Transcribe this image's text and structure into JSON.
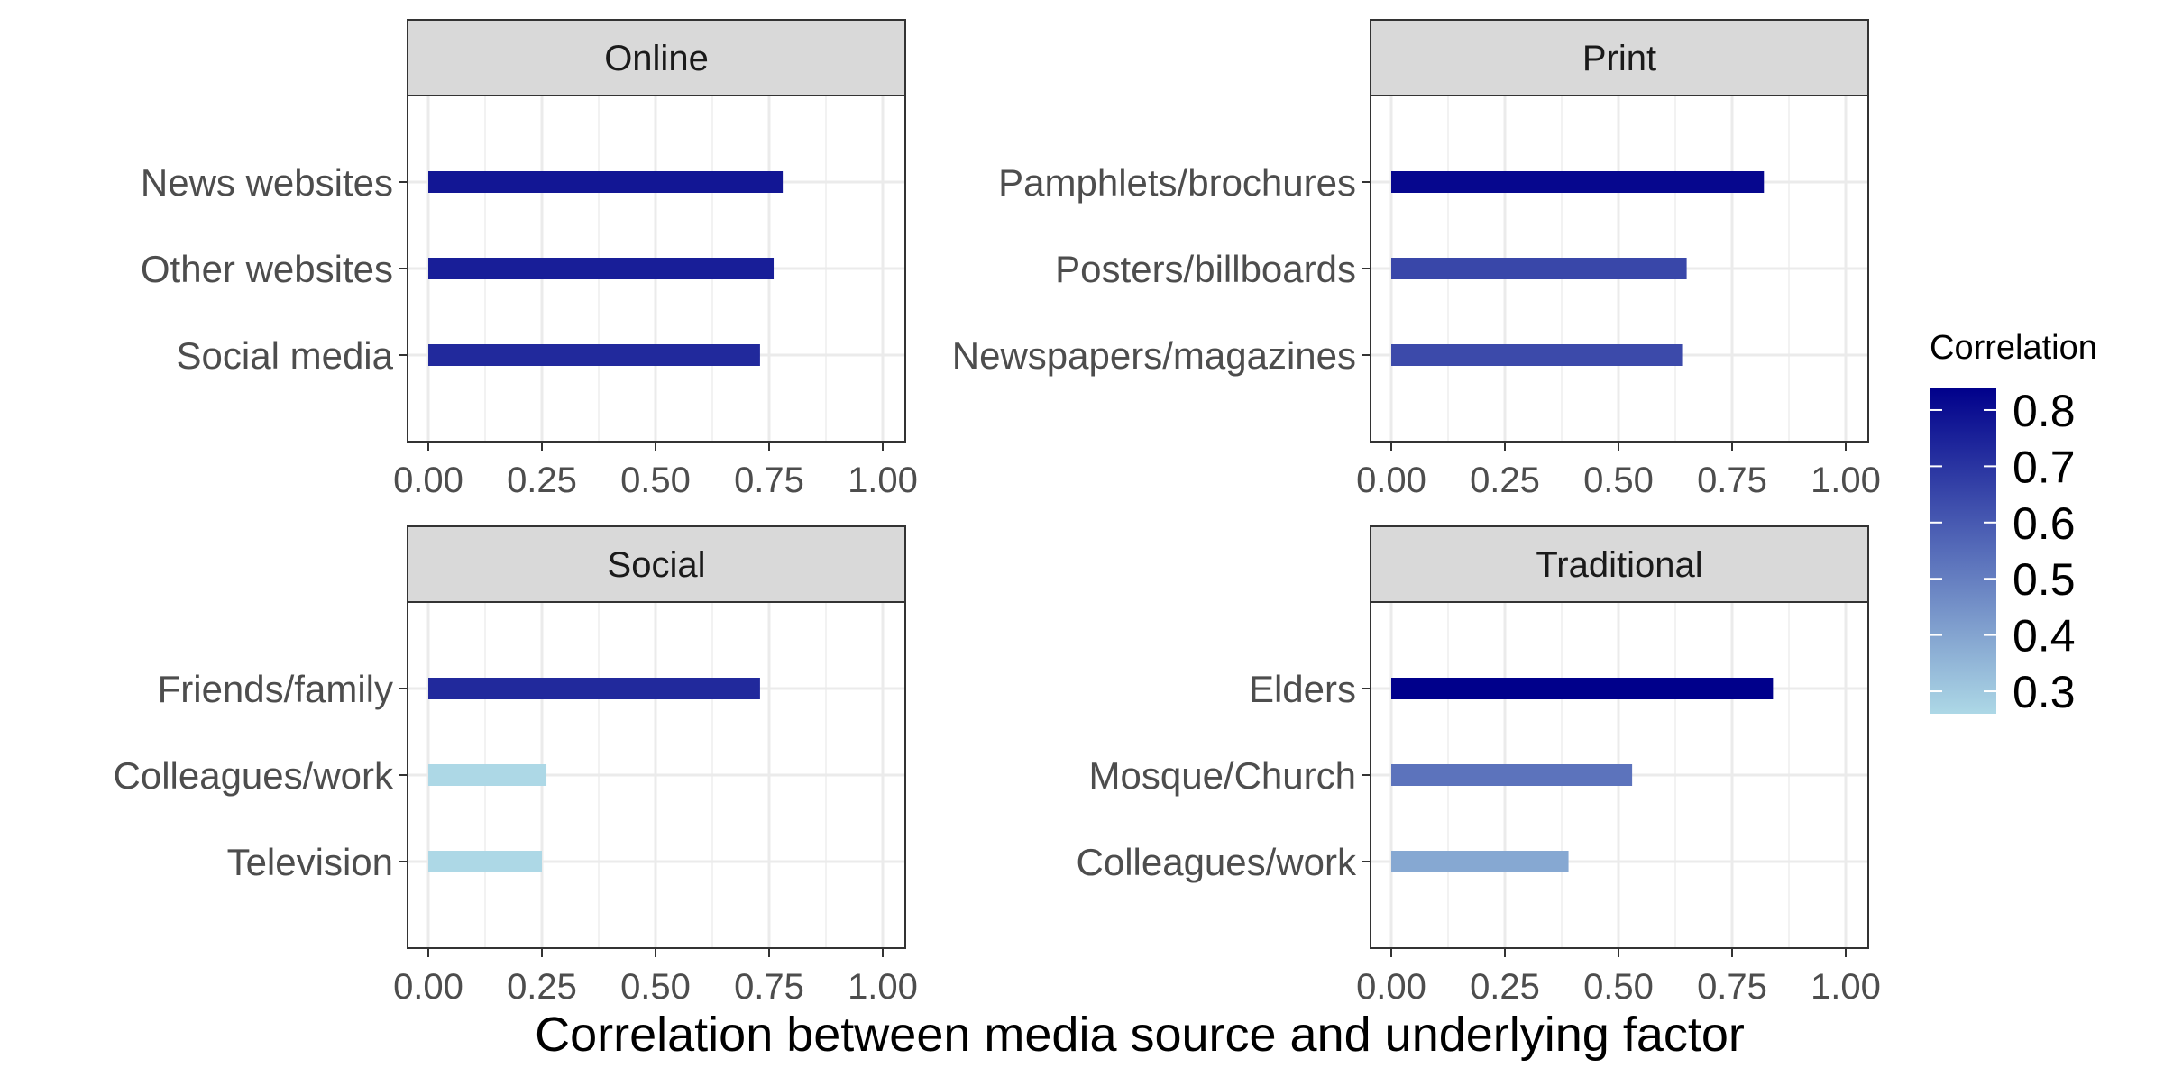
{
  "chart_data": {
    "type": "bar",
    "orientation": "horizontal",
    "faceted": true,
    "xlabel": "Correlation between media source and underlying factor",
    "xlim": [
      0,
      1
    ],
    "x_ticks": [
      "0.00",
      "0.25",
      "0.50",
      "0.75",
      "1.00"
    ],
    "grid": true,
    "legend": {
      "title": "Correlation",
      "position": "right",
      "type": "colorbar",
      "range": [
        0.26,
        0.84
      ],
      "ticks": [
        "0.3",
        "0.4",
        "0.5",
        "0.6",
        "0.7",
        "0.8"
      ],
      "color_low": "#add8e6",
      "color_high": "#00008b"
    },
    "panels": [
      {
        "title": "Online",
        "categories": [
          "News websites",
          "Other websites",
          "Social media"
        ],
        "values": [
          0.78,
          0.76,
          0.73
        ]
      },
      {
        "title": "Print",
        "categories": [
          "Pamphlets/brochures",
          "Posters/billboards",
          "Newspapers/magazines"
        ],
        "values": [
          0.82,
          0.65,
          0.64
        ]
      },
      {
        "title": "Social",
        "categories": [
          "Friends/family",
          "Colleagues/work",
          "Television"
        ],
        "values": [
          0.73,
          0.26,
          0.25
        ]
      },
      {
        "title": "Traditional",
        "categories": [
          "Elders",
          "Mosque/Church",
          "Colleagues/work"
        ],
        "values": [
          0.84,
          0.53,
          0.39
        ]
      }
    ]
  }
}
